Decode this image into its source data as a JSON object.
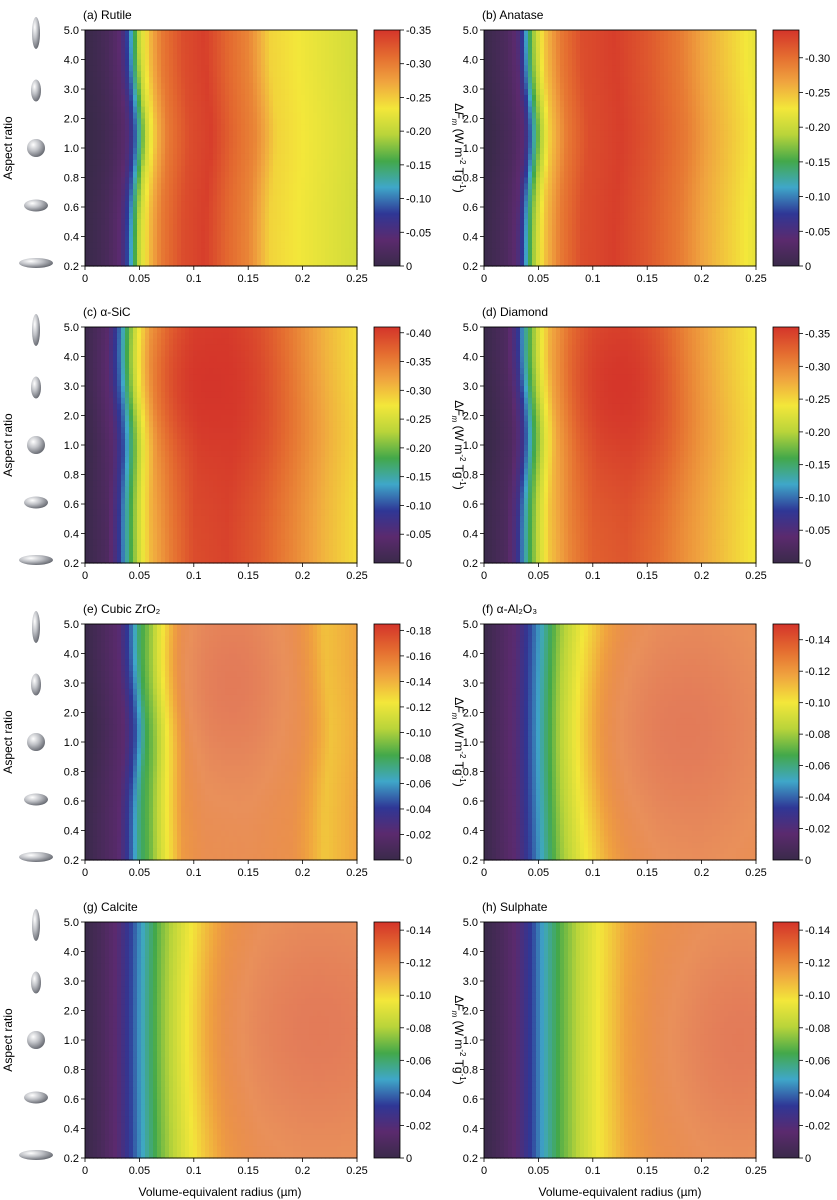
{
  "figure": {
    "ylabel": "Aspect ratio",
    "xlabel": "Volume-equivalent radius (µm)",
    "cbar_label_parts": [
      "Δ",
      "F",
      "m",
      " (W m",
      "-2",
      " Tg",
      "-1",
      ")"
    ],
    "colormap": [
      "#3a2a4a",
      "#5b2a6e",
      "#2f3796",
      "#3fa7c9",
      "#43a84a",
      "#b9d43a",
      "#f3e73a",
      "#f0a53f",
      "#e46c30",
      "#d4342a"
    ],
    "highlight_color": "#eeb27e"
  },
  "chart_data": [
    {
      "id": "a",
      "type": "heatmap",
      "title": "(a) Rutile",
      "x_ticks": [
        "0",
        "0.05",
        "0.1",
        "0.15",
        "0.2",
        "0.25"
      ],
      "xlim": [
        0,
        0.25
      ],
      "y_ticks": [
        "0.2",
        "0.4",
        "0.6",
        "0.8",
        "1.0",
        "2.0",
        "3.0",
        "4.0",
        "5.0"
      ],
      "y_values": [
        0.2,
        0.4,
        0.6,
        0.8,
        1.0,
        2.0,
        3.0,
        4.0,
        5.0
      ],
      "cbar_ticks": [
        "0",
        "-0.05",
        "-0.10",
        "-0.15",
        "-0.20",
        "-0.25",
        "-0.30",
        "-0.35"
      ],
      "cbar_range": [
        0,
        -0.35
      ],
      "x_profile": [
        [
          0,
          0.0
        ],
        [
          0.01,
          0.02
        ],
        [
          0.02,
          0.05
        ],
        [
          0.03,
          0.1
        ],
        [
          0.035,
          0.16
        ],
        [
          0.04,
          0.26
        ],
        [
          0.05,
          0.58
        ],
        [
          0.06,
          0.75
        ],
        [
          0.07,
          0.86
        ],
        [
          0.09,
          0.95
        ],
        [
          0.11,
          0.98
        ],
        [
          0.13,
          0.9
        ],
        [
          0.15,
          0.84
        ],
        [
          0.17,
          0.7
        ],
        [
          0.2,
          0.66
        ],
        [
          0.25,
          0.6
        ]
      ],
      "shift_x": 0.006,
      "core": null
    },
    {
      "id": "b",
      "type": "heatmap",
      "title": "(b) Anatase",
      "x_ticks": [
        "0",
        "0.05",
        "0.1",
        "0.15",
        "0.2",
        "0.25"
      ],
      "xlim": [
        0,
        0.25
      ],
      "y_ticks": [
        "0.2",
        "0.4",
        "0.6",
        "0.8",
        "1.0",
        "2.0",
        "3.0",
        "4.0",
        "5.0"
      ],
      "y_values": [
        0.2,
        0.4,
        0.6,
        0.8,
        1.0,
        2.0,
        3.0,
        4.0,
        5.0
      ],
      "cbar_ticks": [
        "0",
        "-0.05",
        "-0.10",
        "-0.15",
        "-0.20",
        "-0.25",
        "-0.30"
      ],
      "cbar_range": [
        0,
        -0.34
      ],
      "x_profile": [
        [
          0,
          0.0
        ],
        [
          0.01,
          0.03
        ],
        [
          0.02,
          0.06
        ],
        [
          0.03,
          0.12
        ],
        [
          0.035,
          0.22
        ],
        [
          0.045,
          0.52
        ],
        [
          0.055,
          0.72
        ],
        [
          0.07,
          0.86
        ],
        [
          0.09,
          0.95
        ],
        [
          0.12,
          0.98
        ],
        [
          0.15,
          0.93
        ],
        [
          0.18,
          0.86
        ],
        [
          0.2,
          0.78
        ],
        [
          0.25,
          0.64
        ]
      ],
      "shift_x": 0.006,
      "core": null
    },
    {
      "id": "c",
      "type": "heatmap",
      "title": "(c) α-SiC",
      "x_ticks": [
        "0",
        "0.05",
        "0.1",
        "0.15",
        "0.2",
        "0.25"
      ],
      "xlim": [
        0,
        0.25
      ],
      "y_ticks": [
        "0.2",
        "0.4",
        "0.6",
        "0.8",
        "1.0",
        "2.0",
        "3.0",
        "4.0",
        "5.0"
      ],
      "y_values": [
        0.2,
        0.4,
        0.6,
        0.8,
        1.0,
        2.0,
        3.0,
        4.0,
        5.0
      ],
      "cbar_ticks": [
        "0",
        "-0.05",
        "-0.10",
        "-0.15",
        "-0.20",
        "-0.25",
        "-0.30",
        "-0.35",
        "-0.40"
      ],
      "cbar_range": [
        0,
        -0.41
      ],
      "x_profile": [
        [
          0,
          0.0
        ],
        [
          0.01,
          0.03
        ],
        [
          0.02,
          0.06
        ],
        [
          0.03,
          0.18
        ],
        [
          0.04,
          0.4
        ],
        [
          0.05,
          0.6
        ],
        [
          0.06,
          0.74
        ],
        [
          0.08,
          0.86
        ],
        [
          0.1,
          0.95
        ],
        [
          0.13,
          0.97
        ],
        [
          0.16,
          0.92
        ],
        [
          0.19,
          0.84
        ],
        [
          0.22,
          0.75
        ],
        [
          0.25,
          0.68
        ]
      ],
      "shift_x": 0.006,
      "core": [
        0.115,
        0.75,
        0.04,
        0.28
      ]
    },
    {
      "id": "d",
      "type": "heatmap",
      "title": "(d) Diamond",
      "x_ticks": [
        "0",
        "0.05",
        "0.1",
        "0.15",
        "0.2",
        "0.25"
      ],
      "xlim": [
        0,
        0.25
      ],
      "y_ticks": [
        "0.2",
        "0.4",
        "0.6",
        "0.8",
        "1.0",
        "2.0",
        "3.0",
        "4.0",
        "5.0"
      ],
      "y_values": [
        0.2,
        0.4,
        0.6,
        0.8,
        1.0,
        2.0,
        3.0,
        4.0,
        5.0
      ],
      "cbar_ticks": [
        "0",
        "-0.05",
        "-0.10",
        "-0.15",
        "-0.20",
        "-0.25",
        "-0.30",
        "-0.35"
      ],
      "cbar_range": [
        0,
        -0.36
      ],
      "x_profile": [
        [
          0,
          0.0
        ],
        [
          0.01,
          0.03
        ],
        [
          0.02,
          0.06
        ],
        [
          0.03,
          0.17
        ],
        [
          0.04,
          0.4
        ],
        [
          0.05,
          0.58
        ],
        [
          0.06,
          0.72
        ],
        [
          0.08,
          0.84
        ],
        [
          0.1,
          0.91
        ],
        [
          0.13,
          0.93
        ],
        [
          0.16,
          0.88
        ],
        [
          0.19,
          0.8
        ],
        [
          0.22,
          0.73
        ],
        [
          0.25,
          0.66
        ]
      ],
      "shift_x": 0.006,
      "core": [
        0.125,
        0.75,
        0.035,
        0.3
      ]
    },
    {
      "id": "e",
      "type": "heatmap",
      "title": "(e) Cubic ZrO₂",
      "x_ticks": [
        "0",
        "0.05",
        "0.1",
        "0.15",
        "0.2",
        "0.25"
      ],
      "xlim": [
        0,
        0.25
      ],
      "y_ticks": [
        "0.2",
        "0.4",
        "0.6",
        "0.8",
        "1.0",
        "2.0",
        "3.0",
        "4.0",
        "5.0"
      ],
      "y_values": [
        0.2,
        0.4,
        0.6,
        0.8,
        1.0,
        2.0,
        3.0,
        4.0,
        5.0
      ],
      "cbar_ticks": [
        "0",
        "-0.02",
        "-0.04",
        "-0.06",
        "-0.08",
        "-0.10",
        "-0.12",
        "-0.14",
        "-0.16",
        "-0.18"
      ],
      "cbar_range": [
        0,
        -0.185
      ],
      "x_profile": [
        [
          0,
          0.0
        ],
        [
          0.015,
          0.05
        ],
        [
          0.03,
          0.1
        ],
        [
          0.04,
          0.22
        ],
        [
          0.05,
          0.4
        ],
        [
          0.06,
          0.48
        ],
        [
          0.07,
          0.6
        ],
        [
          0.08,
          0.7
        ],
        [
          0.09,
          0.8
        ],
        [
          0.11,
          0.86
        ],
        [
          0.15,
          0.87
        ],
        [
          0.19,
          0.84
        ],
        [
          0.22,
          0.72
        ],
        [
          0.25,
          0.78
        ]
      ],
      "shift_x": 0.006,
      "core": [
        0.135,
        0.75,
        0.035,
        0.32
      ]
    },
    {
      "id": "f",
      "type": "heatmap",
      "title": "(f) α-Al₂O₃",
      "x_ticks": [
        "0",
        "0.05",
        "0.1",
        "0.15",
        "0.2",
        "0.25"
      ],
      "xlim": [
        0,
        0.25
      ],
      "y_ticks": [
        "0.2",
        "0.4",
        "0.6",
        "0.8",
        "1.0",
        "2.0",
        "3.0",
        "4.0",
        "5.0"
      ],
      "y_values": [
        0.2,
        0.4,
        0.6,
        0.8,
        1.0,
        2.0,
        3.0,
        4.0,
        5.0
      ],
      "cbar_ticks": [
        "0",
        "-0.02",
        "-0.04",
        "-0.06",
        "-0.08",
        "-0.10",
        "-0.12",
        "-0.14"
      ],
      "cbar_range": [
        0,
        -0.15
      ],
      "x_profile": [
        [
          0,
          0.0
        ],
        [
          0.015,
          0.06
        ],
        [
          0.03,
          0.12
        ],
        [
          0.045,
          0.25
        ],
        [
          0.055,
          0.35
        ],
        [
          0.07,
          0.5
        ],
        [
          0.09,
          0.62
        ],
        [
          0.11,
          0.72
        ],
        [
          0.13,
          0.8
        ],
        [
          0.16,
          0.86
        ],
        [
          0.2,
          0.88
        ],
        [
          0.25,
          0.86
        ]
      ],
      "shift_x": 0.0,
      "core": [
        0.185,
        0.55,
        0.055,
        0.35
      ]
    },
    {
      "id": "g",
      "type": "heatmap",
      "title": "(g) Calcite",
      "x_ticks": [
        "0",
        "0.05",
        "0.1",
        "0.15",
        "0.2",
        "0.25"
      ],
      "xlim": [
        0,
        0.25
      ],
      "y_ticks": [
        "0.2",
        "0.4",
        "0.6",
        "0.8",
        "1.0",
        "2.0",
        "3.0",
        "4.0",
        "5.0"
      ],
      "y_values": [
        0.2,
        0.4,
        0.6,
        0.8,
        1.0,
        2.0,
        3.0,
        4.0,
        5.0
      ],
      "cbar_ticks": [
        "0",
        "-0.02",
        "-0.04",
        "-0.06",
        "-0.08",
        "-0.10",
        "-0.12",
        "-0.14"
      ],
      "cbar_range": [
        0,
        -0.145
      ],
      "x_profile": [
        [
          0,
          0.0
        ],
        [
          0.015,
          0.05
        ],
        [
          0.03,
          0.12
        ],
        [
          0.045,
          0.25
        ],
        [
          0.055,
          0.35
        ],
        [
          0.07,
          0.48
        ],
        [
          0.09,
          0.6
        ],
        [
          0.11,
          0.7
        ],
        [
          0.13,
          0.78
        ],
        [
          0.16,
          0.84
        ],
        [
          0.2,
          0.86
        ],
        [
          0.25,
          0.86
        ]
      ],
      "shift_x": 0.0,
      "core": [
        0.215,
        0.55,
        0.06,
        0.38
      ]
    },
    {
      "id": "h",
      "type": "heatmap",
      "title": "(h) Sulphate",
      "x_ticks": [
        "0",
        "0.05",
        "0.1",
        "0.15",
        "0.2",
        "0.25"
      ],
      "xlim": [
        0,
        0.25
      ],
      "y_ticks": [
        "0.2",
        "0.4",
        "0.6",
        "0.8",
        "1.0",
        "2.0",
        "3.0",
        "4.0",
        "5.0"
      ],
      "y_values": [
        0.2,
        0.4,
        0.6,
        0.8,
        1.0,
        2.0,
        3.0,
        4.0,
        5.0
      ],
      "cbar_ticks": [
        "0",
        "-0.02",
        "-0.04",
        "-0.06",
        "-0.08",
        "-0.10",
        "-0.12",
        "-0.14"
      ],
      "cbar_range": [
        0,
        -0.145
      ],
      "x_profile": [
        [
          0,
          0.0
        ],
        [
          0.015,
          0.05
        ],
        [
          0.03,
          0.12
        ],
        [
          0.045,
          0.24
        ],
        [
          0.055,
          0.34
        ],
        [
          0.07,
          0.46
        ],
        [
          0.09,
          0.58
        ],
        [
          0.11,
          0.68
        ],
        [
          0.13,
          0.76
        ],
        [
          0.16,
          0.82
        ],
        [
          0.2,
          0.84
        ],
        [
          0.25,
          0.84
        ]
      ],
      "shift_x": 0.0,
      "core": [
        0.235,
        0.5,
        0.05,
        0.38
      ]
    }
  ]
}
